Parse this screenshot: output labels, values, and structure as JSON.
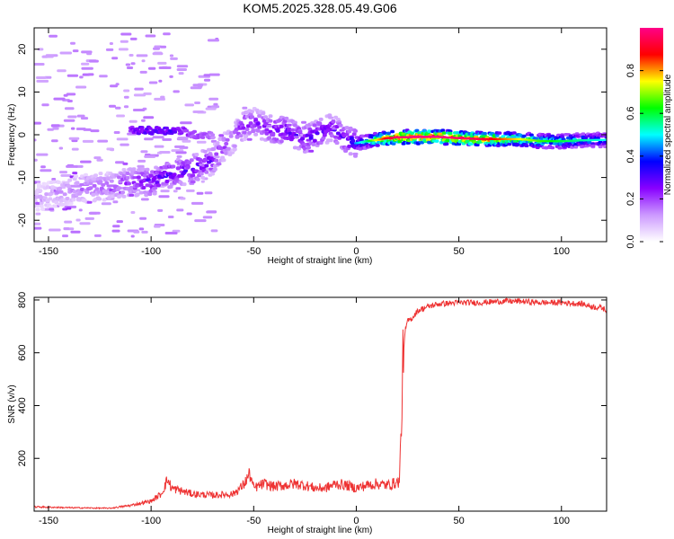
{
  "title": "KOM5.2025.328.05.49.G06",
  "chart_data": [
    {
      "type": "heatmap",
      "title": "KOM5.2025.328.05.49.G06",
      "xlabel": "Height of straight line (km)",
      "ylabel": "Frequency (Hz)",
      "xlim": [
        -157,
        122
      ],
      "ylim": [
        -25,
        25
      ],
      "xticks": [
        -150,
        -100,
        -50,
        0,
        50,
        100
      ],
      "yticks": [
        -20,
        -10,
        0,
        10,
        20
      ],
      "colorbar": {
        "label": "Normalized spectral amplitude",
        "range": [
          0,
          1
        ],
        "ticks": [
          "0.0",
          "0.2",
          "0.4",
          "0.6",
          "0.8"
        ],
        "colors": [
          "#ffffff",
          "#cc99ff",
          "#8800ff",
          "#0000ff",
          "#00ffff",
          "#00ff00",
          "#ffff00",
          "#ff0000",
          "#ff0088"
        ]
      },
      "ridge": {
        "x": [
          -157,
          -140,
          -120,
          -110,
          -100,
          -95,
          -90,
          -80,
          -75,
          -70,
          -65,
          -60,
          -57,
          -55,
          -50,
          -45,
          -40,
          -35,
          -30,
          -25,
          -20,
          -15,
          -12,
          -10,
          -8,
          -5,
          -2,
          0,
          5,
          10,
          15,
          20,
          30,
          40,
          50,
          60,
          70,
          80,
          90,
          100,
          110,
          122
        ],
        "freq": [
          -15,
          -13,
          -12,
          -11,
          -11,
          -10,
          -9,
          -8,
          -7,
          -6,
          -3,
          -1,
          1,
          2,
          3,
          2,
          1,
          1,
          0,
          -1,
          0,
          1,
          2,
          1,
          0,
          -1,
          -1.5,
          -2,
          -1.5,
          -1.2,
          -0.8,
          -0.6,
          -0.5,
          -0.5,
          -0.8,
          -1,
          -1,
          -1,
          -1.5,
          -1.5,
          -1.3,
          -1.2
        ],
        "amplitude": [
          0.1,
          0.15,
          0.2,
          0.25,
          0.32,
          0.3,
          0.33,
          0.3,
          0.3,
          0.28,
          0.22,
          0.2,
          0.25,
          0.25,
          0.25,
          0.25,
          0.3,
          0.33,
          0.3,
          0.3,
          0.32,
          0.3,
          0.3,
          0.3,
          0.3,
          0.32,
          0.35,
          0.4,
          0.5,
          0.7,
          0.85,
          0.92,
          0.95,
          0.95,
          0.92,
          0.9,
          0.8,
          0.7,
          0.6,
          0.55,
          0.5,
          0.45
        ]
      },
      "upper_branch": {
        "x": [
          -110,
          -100,
          -95,
          -90,
          -85,
          -80,
          -75,
          -70
        ],
        "freq": [
          1,
          1,
          1,
          1,
          1,
          0,
          0,
          0
        ],
        "amplitude": [
          0.25,
          0.3,
          0.3,
          0.3,
          0.25,
          0.2,
          0.2,
          0.15
        ]
      }
    },
    {
      "type": "line",
      "xlabel": "Height of straight line (km)",
      "ylabel": "SNR (v/v)",
      "xlim": [
        -157,
        122
      ],
      "ylim": [
        0,
        810
      ],
      "xticks": [
        -150,
        -100,
        -50,
        0,
        50,
        100
      ],
      "yticks": [
        200,
        400,
        600,
        800
      ],
      "color": "#ee3333",
      "series": [
        {
          "x": [
            -157,
            -140,
            -120,
            -110,
            -100,
            -95,
            -92,
            -90,
            -80,
            -70,
            -60,
            -55,
            -52,
            -50,
            -45,
            -40,
            -35,
            -30,
            -25,
            -20,
            -15,
            -10,
            -5,
            0,
            5,
            10,
            15,
            20,
            21,
            22,
            23,
            24,
            25,
            27,
            30,
            35,
            40,
            50,
            60,
            70,
            80,
            90,
            100,
            110,
            115,
            120,
            122
          ],
          "y": [
            15,
            12,
            10,
            20,
            35,
            60,
            110,
            80,
            60,
            55,
            60,
            90,
            130,
            80,
            95,
            85,
            90,
            95,
            90,
            80,
            80,
            95,
            90,
            80,
            90,
            95,
            90,
            100,
            105,
            300,
            600,
            690,
            720,
            730,
            760,
            775,
            785,
            790,
            790,
            795,
            795,
            790,
            790,
            785,
            775,
            770,
            760
          ]
        }
      ]
    }
  ]
}
